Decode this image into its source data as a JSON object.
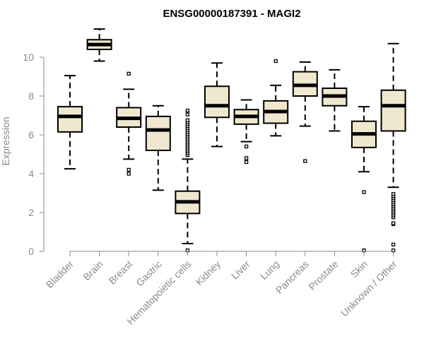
{
  "chart_data": {
    "type": "boxplot",
    "title": "ENSG00000187391 - MAGI2",
    "ylabel": "Expression",
    "xlabel": "",
    "ylim": [
      0,
      11
    ],
    "yticks": [
      0,
      2,
      4,
      6,
      8,
      10
    ],
    "grid": false,
    "box_fill": "#efe8cf",
    "categories": [
      "Bladder",
      "Brain",
      "Breast",
      "Gastric",
      "Hematopoietic cells",
      "Kidney",
      "Liver",
      "Lung",
      "Pancreas",
      "Prostate",
      "Skin",
      "Unknown / Other"
    ],
    "boxes": [
      {
        "whisker_low": 4.25,
        "q1": 6.15,
        "median": 6.95,
        "q3": 7.45,
        "whisker_high": 9.05,
        "outliers": []
      },
      {
        "whisker_low": 9.8,
        "q1": 10.4,
        "median": 10.65,
        "q3": 10.9,
        "whisker_high": 11.45,
        "outliers": []
      },
      {
        "whisker_low": 4.75,
        "q1": 6.4,
        "median": 6.85,
        "q3": 7.4,
        "whisker_high": 8.35,
        "outliers": [
          4.0,
          4.2,
          9.15
        ]
      },
      {
        "whisker_low": 3.15,
        "q1": 5.2,
        "median": 6.25,
        "q3": 6.95,
        "whisker_high": 7.5,
        "outliers": []
      },
      {
        "whisker_low": 0.4,
        "q1": 1.95,
        "median": 2.55,
        "q3": 3.1,
        "whisker_high": 4.75,
        "outliers": [
          0.05,
          4.95,
          5.05,
          5.15,
          5.25,
          5.35,
          5.45,
          5.55,
          5.65,
          5.75,
          5.85,
          5.95,
          6.05,
          6.15,
          6.25,
          6.35,
          6.45,
          6.55,
          6.65,
          6.75,
          7.05,
          7.25
        ]
      },
      {
        "whisker_low": 5.4,
        "q1": 6.9,
        "median": 7.5,
        "q3": 8.5,
        "whisker_high": 9.7,
        "outliers": []
      },
      {
        "whisker_low": 5.65,
        "q1": 6.55,
        "median": 6.95,
        "q3": 7.3,
        "whisker_high": 7.8,
        "outliers": [
          4.6,
          4.8,
          5.4
        ]
      },
      {
        "whisker_low": 5.95,
        "q1": 6.6,
        "median": 7.2,
        "q3": 7.75,
        "whisker_high": 8.55,
        "outliers": [
          9.8
        ]
      },
      {
        "whisker_low": 6.45,
        "q1": 8.0,
        "median": 8.55,
        "q3": 9.25,
        "whisker_high": 9.75,
        "outliers": [
          4.65
        ]
      },
      {
        "whisker_low": 6.2,
        "q1": 7.5,
        "median": 8.0,
        "q3": 8.4,
        "whisker_high": 9.35,
        "outliers": []
      },
      {
        "whisker_low": 4.1,
        "q1": 5.35,
        "median": 6.05,
        "q3": 6.7,
        "whisker_high": 7.45,
        "outliers": [
          0.05,
          3.05
        ]
      },
      {
        "whisker_low": 3.3,
        "q1": 6.2,
        "median": 7.5,
        "q3": 8.3,
        "whisker_high": 10.7,
        "outliers": [
          0.05,
          0.35,
          1.4,
          1.45,
          1.75,
          1.85,
          1.95,
          2.05,
          2.15,
          2.25,
          2.35,
          2.45,
          2.55,
          2.65,
          2.75,
          2.85,
          2.95
        ]
      }
    ]
  }
}
